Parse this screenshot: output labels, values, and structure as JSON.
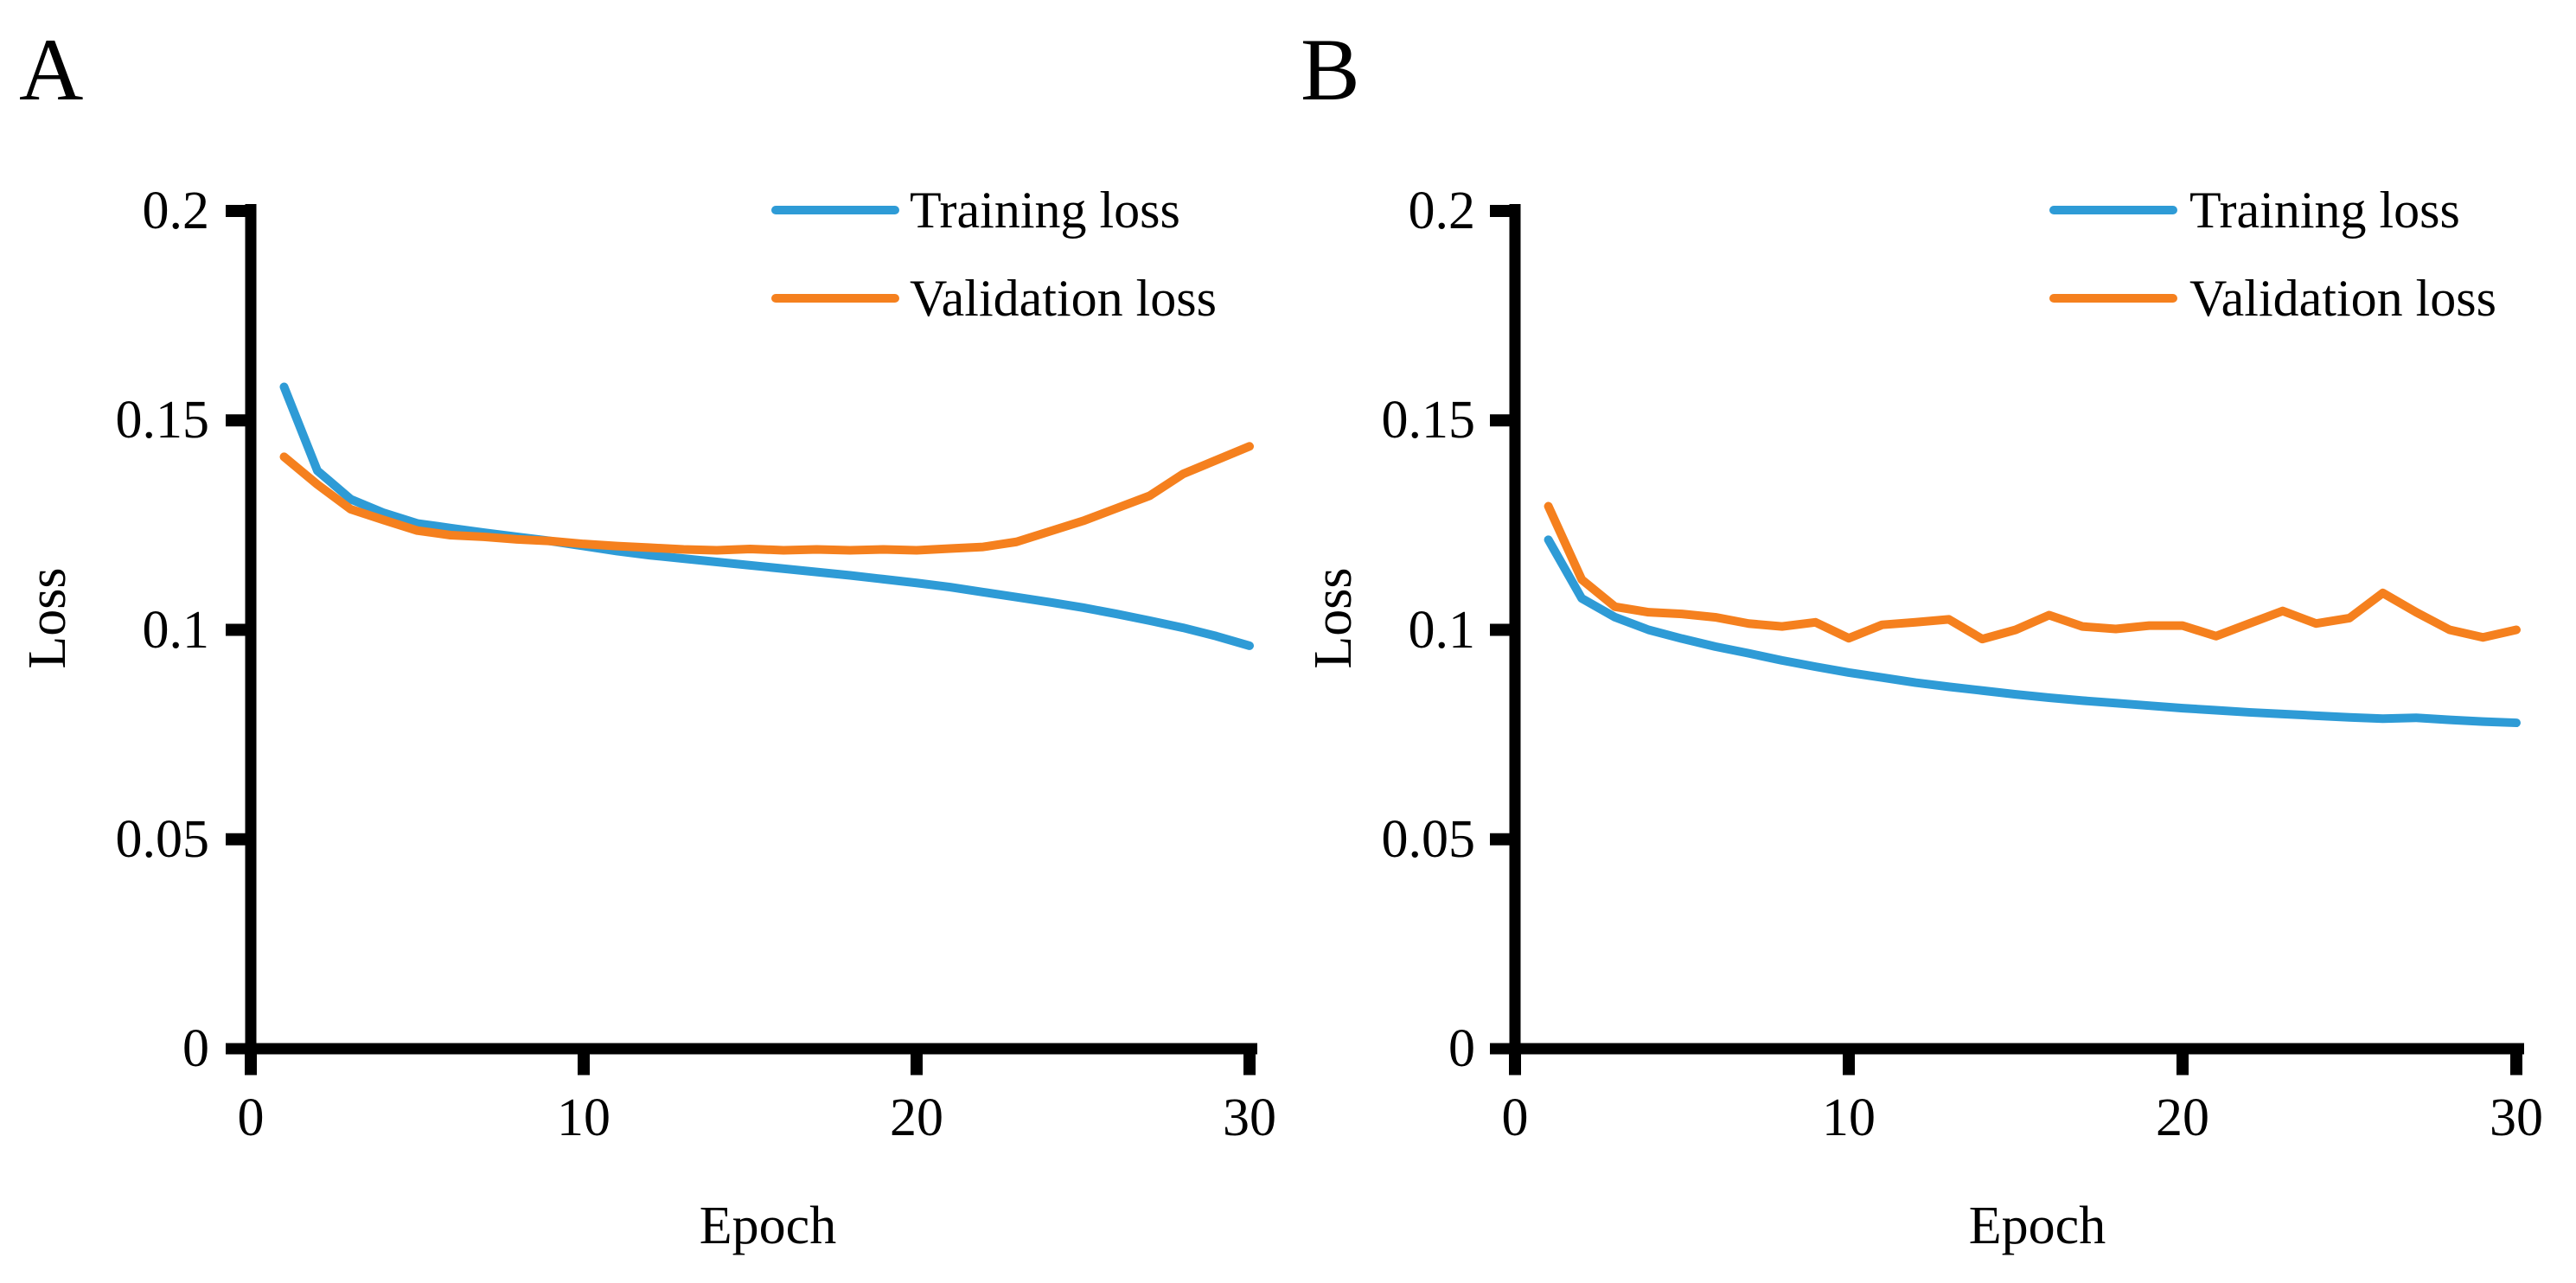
{
  "figure": {
    "panels": [
      {
        "label": "A",
        "ylabel": "Loss",
        "xlabel": "Epoch",
        "y_tick_labels": [
          "0.2",
          "0.15",
          "0.1",
          "0.05",
          "0"
        ],
        "x_tick_labels": [
          "0",
          "10",
          "20",
          "30"
        ],
        "legend": [
          {
            "label": "Training loss",
            "series": "training"
          },
          {
            "label": "Validation loss",
            "series": "validation"
          }
        ]
      },
      {
        "label": "B",
        "ylabel": "Loss",
        "xlabel": "Epoch",
        "y_tick_labels": [
          "0.2",
          "0.15",
          "0.1",
          "0.05",
          "0"
        ],
        "x_tick_labels": [
          "0",
          "10",
          "20",
          "30"
        ],
        "legend": [
          {
            "label": "Training loss",
            "series": "training"
          },
          {
            "label": "Validation loss",
            "series": "validation"
          }
        ]
      }
    ]
  },
  "colors": {
    "training": "#2E9BD6",
    "validation": "#F5801E",
    "axis": "#000000",
    "text": "#000000",
    "background": "#FFFFFF"
  },
  "chart_data": [
    {
      "type": "line",
      "panel": "A",
      "title": "A",
      "xlabel": "Epoch",
      "ylabel": "Loss",
      "xlim": [
        0,
        30
      ],
      "ylim": [
        0,
        0.2
      ],
      "x_ticks": [
        0,
        10,
        20,
        30
      ],
      "y_ticks": [
        0.2,
        0.15,
        0.1,
        0.05,
        0
      ],
      "grid": false,
      "legend_position": "top-right",
      "x": [
        1,
        2,
        3,
        4,
        5,
        6,
        7,
        8,
        9,
        10,
        11,
        12,
        13,
        14,
        15,
        16,
        17,
        18,
        19,
        20,
        21,
        22,
        23,
        24,
        25,
        26,
        27,
        28,
        29,
        30
      ],
      "series": [
        {
          "name": "Training loss",
          "color": "#2E9BD6",
          "values": [
            0.158,
            0.138,
            0.1312,
            0.1279,
            0.1254,
            0.1243,
            0.1232,
            0.1222,
            0.1212,
            0.12,
            0.1188,
            0.1178,
            0.117,
            0.1162,
            0.1154,
            0.1146,
            0.1138,
            0.113,
            0.1121,
            0.1112,
            0.1102,
            0.109,
            0.1078,
            0.1066,
            0.1053,
            0.1038,
            0.1022,
            0.1005,
            0.0985,
            0.0962
          ]
        },
        {
          "name": "Validation loss",
          "color": "#F5801E",
          "values": [
            0.1413,
            0.1347,
            0.1288,
            0.1262,
            0.1237,
            0.1226,
            0.1222,
            0.1216,
            0.1212,
            0.1205,
            0.12,
            0.1196,
            0.1192,
            0.119,
            0.1193,
            0.119,
            0.1192,
            0.119,
            0.1192,
            0.119,
            0.1194,
            0.1198,
            0.121,
            0.1235,
            0.126,
            0.129,
            0.132,
            0.1372,
            0.1405,
            0.1438
          ]
        }
      ]
    },
    {
      "type": "line",
      "panel": "B",
      "title": "B",
      "xlabel": "Epoch",
      "ylabel": "Loss",
      "xlim": [
        0,
        30
      ],
      "ylim": [
        0,
        0.2
      ],
      "x_ticks": [
        0,
        10,
        20,
        30
      ],
      "y_ticks": [
        0.2,
        0.15,
        0.1,
        0.05,
        0
      ],
      "grid": false,
      "legend_position": "top-right",
      "x": [
        1,
        2,
        3,
        4,
        5,
        6,
        7,
        8,
        9,
        10,
        11,
        12,
        13,
        14,
        15,
        16,
        17,
        18,
        19,
        20,
        21,
        22,
        23,
        24,
        25,
        26,
        27,
        28,
        29,
        30
      ],
      "series": [
        {
          "name": "Training loss",
          "color": "#2E9BD6",
          "values": [
            0.1215,
            0.1075,
            0.103,
            0.1,
            0.0979,
            0.096,
            0.0944,
            0.0927,
            0.0912,
            0.0898,
            0.0886,
            0.0874,
            0.0864,
            0.0855,
            0.0846,
            0.0838,
            0.0831,
            0.0825,
            0.0819,
            0.0813,
            0.0808,
            0.0803,
            0.0799,
            0.0795,
            0.0791,
            0.0788,
            0.079,
            0.0785,
            0.0781,
            0.0778
          ]
        },
        {
          "name": "Validation loss",
          "color": "#F5801E",
          "values": [
            0.1295,
            0.112,
            0.1055,
            0.1042,
            0.1038,
            0.103,
            0.1015,
            0.1008,
            0.1018,
            0.098,
            0.1012,
            0.1018,
            0.1025,
            0.0978,
            0.1,
            0.1035,
            0.1008,
            0.1002,
            0.101,
            0.101,
            0.0985,
            0.1015,
            0.1045,
            0.1015,
            0.1028,
            0.1088,
            0.1042,
            0.1,
            0.0982,
            0.1
          ]
        }
      ]
    }
  ]
}
